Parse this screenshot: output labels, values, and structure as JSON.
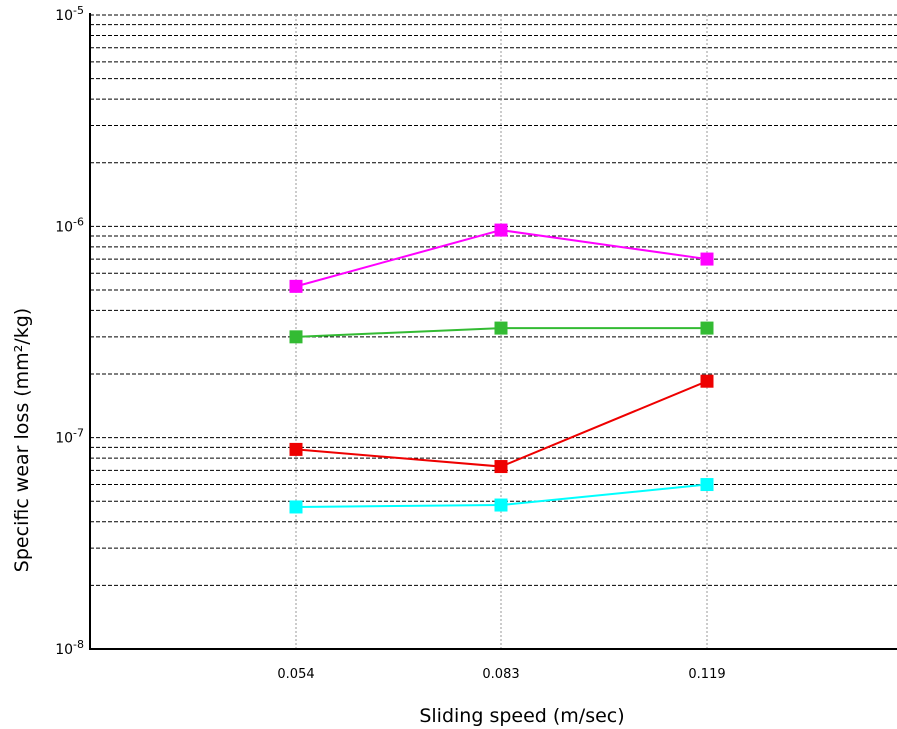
{
  "chart_data": {
    "type": "line",
    "xlabel": "Sliding speed (m/sec)",
    "ylabel": "Specific wear loss (mm²/kg)",
    "yscale": "log",
    "ylim": [
      1e-08,
      1e-05
    ],
    "y_ticks": [
      {
        "value": 1e-05,
        "base": "10",
        "exp": "-5"
      },
      {
        "value": 1e-06,
        "base": "10",
        "exp": "-6"
      },
      {
        "value": 1e-07,
        "base": "10",
        "exp": "-7"
      },
      {
        "value": 1e-08,
        "base": "10",
        "exp": "-8"
      }
    ],
    "categories": [
      "0.054",
      "0.083",
      "0.119"
    ],
    "grid": true,
    "legend": "none",
    "series": [
      {
        "color": "#ff00ff",
        "values": [
          5.2e-07,
          9.6e-07,
          7e-07
        ]
      },
      {
        "color": "#33bb33",
        "values": [
          3e-07,
          3.3e-07,
          3.3e-07
        ]
      },
      {
        "color": "#ee0000",
        "values": [
          8.8e-08,
          7.3e-08,
          1.85e-07
        ]
      },
      {
        "color": "#00ffff",
        "values": [
          4.7e-08,
          4.8e-08,
          6e-08
        ]
      }
    ]
  }
}
